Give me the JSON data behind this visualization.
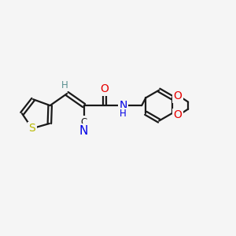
{
  "background_color": "#f5f5f5",
  "bond_color": "#1a1a1a",
  "atom_colors": {
    "S": "#b8b800",
    "O": "#e60000",
    "N": "#0000e6",
    "H_teal": "#5a9090",
    "CN_color": "#0000e6",
    "C_label": "#1a1a1a"
  },
  "figsize": [
    3.0,
    3.0
  ],
  "dpi": 100,
  "xlim": [
    0,
    12
  ],
  "ylim": [
    0,
    10
  ]
}
